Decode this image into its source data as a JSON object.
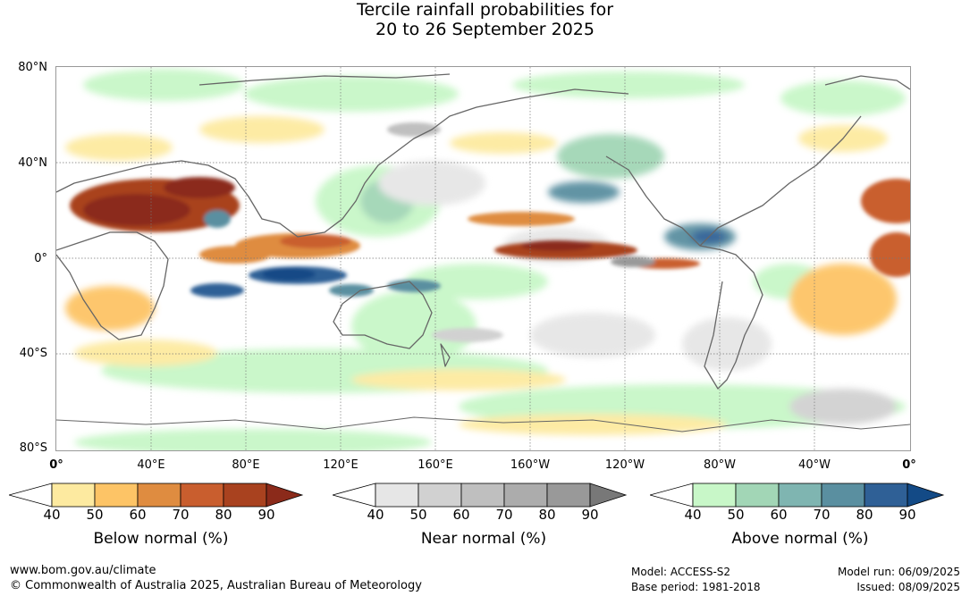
{
  "title_line1": "Tercile rainfall probabilities for",
  "title_line2": "20 to 26 September 2025",
  "lat_labels": [
    "80°N",
    "40°N",
    "0°",
    "40°S",
    "80°S"
  ],
  "lon_labels": [
    "0°",
    "40°E",
    "80°E",
    "120°E",
    "160°E",
    "160°W",
    "120°W",
    "80°W",
    "40°W",
    "0°"
  ],
  "legends": [
    {
      "name": "Below normal (%)",
      "ticks": [
        "40",
        "50",
        "60",
        "70",
        "80",
        "90"
      ],
      "colors": [
        "#ffffff",
        "#fdeaa0",
        "#fdc466",
        "#df8c40",
        "#c95e2e",
        "#a9421f",
        "#8b2a1a"
      ]
    },
    {
      "name": "Near normal (%)",
      "ticks": [
        "40",
        "50",
        "60",
        "70",
        "80",
        "90"
      ],
      "colors": [
        "#ffffff",
        "#e6e6e6",
        "#d1d1d1",
        "#bfbfbf",
        "#acacac",
        "#999999",
        "#787878"
      ]
    },
    {
      "name": "Above normal (%)",
      "ticks": [
        "40",
        "50",
        "60",
        "70",
        "80",
        "90"
      ],
      "colors": [
        "#ffffff",
        "#c8f7c8",
        "#a2d6b6",
        "#7fb5b1",
        "#5a8fa0",
        "#2f6096",
        "#134a86"
      ]
    }
  ],
  "footer": {
    "url": "www.bom.gov.au/climate",
    "copyright": "© Commonwealth of Australia 2025, Australian Bureau of Meteorology",
    "model": "Model: ACCESS-S2",
    "base_period": "Base period: 1981-2018",
    "model_run": "Model run: 06/09/2025",
    "issued": "Issued: 08/09/2025"
  }
}
